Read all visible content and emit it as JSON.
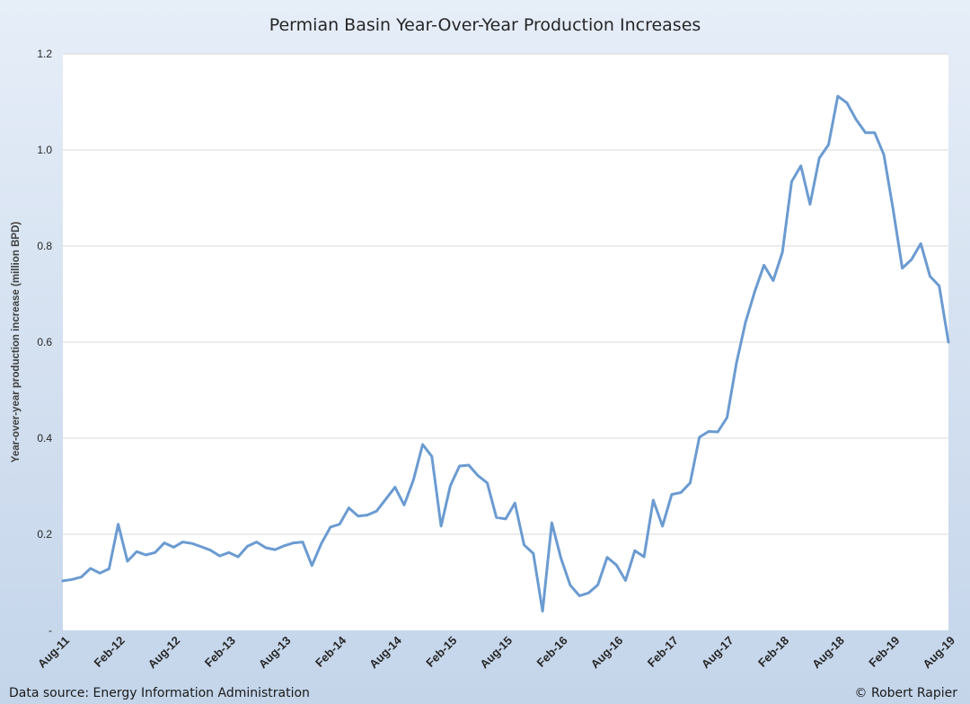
{
  "chart_data": {
    "type": "line",
    "title": "Permian Basin Year-Over-Year Production Increases",
    "ylabel": "Year-over-year production increase (million BPD)",
    "xlabel": "",
    "ylim": [
      0,
      1.2
    ],
    "y_ticks": [
      "-",
      "0.2",
      "0.4",
      "0.6",
      "0.8",
      "1.0",
      "1.2"
    ],
    "y_tick_values": [
      0,
      0.2,
      0.4,
      0.6,
      0.8,
      1.0,
      1.2
    ],
    "x_ticks": [
      "Aug-11",
      "Feb-12",
      "Aug-12",
      "Feb-13",
      "Aug-13",
      "Feb-14",
      "Aug-14",
      "Feb-15",
      "Aug-15",
      "Feb-16",
      "Aug-16",
      "Feb-17",
      "Aug-17",
      "Feb-18",
      "Aug-18",
      "Feb-19",
      "Aug-19"
    ],
    "grid": true,
    "line_color": "#6b9bd1",
    "series": [
      {
        "values": [
          0.103,
          0.106,
          0.111,
          0.129,
          0.119,
          0.128,
          0.221,
          0.144,
          0.164,
          0.157,
          0.162,
          0.182,
          0.173,
          0.184,
          0.181,
          0.174,
          0.167,
          0.155,
          0.162,
          0.153,
          0.175,
          0.184,
          0.172,
          0.168,
          0.176,
          0.182,
          0.184,
          0.135,
          0.18,
          0.215,
          0.221,
          0.255,
          0.238,
          0.24,
          0.248,
          0.273,
          0.298,
          0.261,
          0.313,
          0.387,
          0.362,
          0.217,
          0.301,
          0.342,
          0.344,
          0.322,
          0.307,
          0.235,
          0.232,
          0.265,
          0.178,
          0.16,
          0.04,
          0.224,
          0.15,
          0.094,
          0.072,
          0.078,
          0.095,
          0.152,
          0.136,
          0.104,
          0.166,
          0.153,
          0.271,
          0.217,
          0.283,
          0.287,
          0.307,
          0.402,
          0.414,
          0.413,
          0.443,
          0.555,
          0.641,
          0.705,
          0.76,
          0.728,
          0.787,
          0.934,
          0.967,
          0.887,
          0.983,
          1.011,
          1.112,
          1.098,
          1.063,
          1.036,
          1.036,
          0.99,
          0.876,
          0.754,
          0.772,
          0.805,
          0.737,
          0.717,
          0.6
        ]
      }
    ]
  },
  "footer": {
    "source": "Data source: Energy Information Administration",
    "credit": "© Robert Rapier"
  }
}
